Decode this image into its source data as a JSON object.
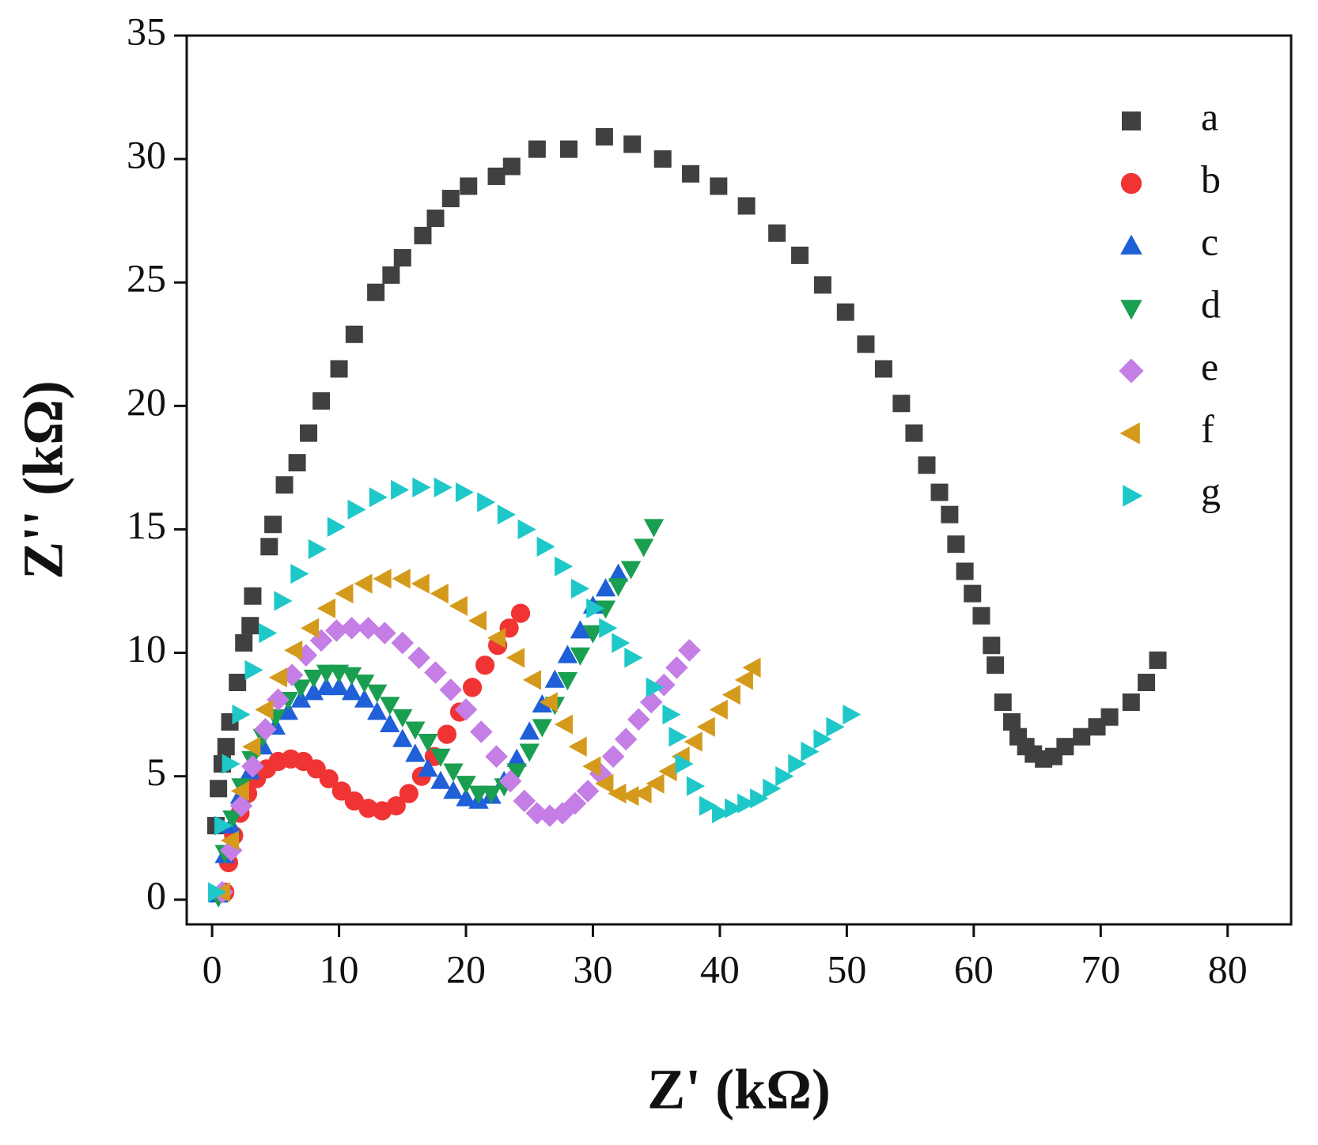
{
  "chart_data": {
    "type": "scatter",
    "x_label": "Z' (kΩ)",
    "y_label": "Z'' (kΩ)",
    "xlim": [
      -2,
      85
    ],
    "ylim": [
      -1,
      35
    ],
    "xticks": [
      0,
      10,
      20,
      30,
      40,
      50,
      60,
      70,
      80
    ],
    "yticks": [
      0,
      5,
      10,
      15,
      20,
      25,
      30,
      35
    ],
    "legend": "upper right",
    "series": [
      {
        "name": "a",
        "color": "#404040",
        "marker": "square",
        "x": [
          0.3,
          0.5,
          0.8,
          1.1,
          1.4,
          2,
          2.5,
          3,
          3.2,
          4.5,
          4.8,
          5.7,
          6.7,
          7.6,
          8.6,
          10,
          11.2,
          12.9,
          14.1,
          15,
          16.6,
          17.6,
          18.8,
          20.2,
          22.4,
          23.6,
          25.6,
          28.1,
          30.9,
          33.1,
          35.5,
          37.7,
          39.9,
          42.1,
          44.5,
          46.3,
          48.1,
          49.9,
          51.5,
          52.9,
          54.3,
          55.3,
          56.3,
          57.3,
          58.1,
          58.6,
          59.3,
          59.9,
          60.6,
          61.4,
          61.7,
          62.3,
          63,
          63.5,
          64.1,
          64.7,
          65.5,
          66.3,
          67.2,
          68.5,
          69.7,
          70.7,
          72.4,
          73.6,
          74.5
        ],
        "values": [
          3,
          4.5,
          5.5,
          6.2,
          7.2,
          8.8,
          10.4,
          11.1,
          12.3,
          14.3,
          15.2,
          16.8,
          17.7,
          18.9,
          20.2,
          21.5,
          22.9,
          24.6,
          25.3,
          26,
          26.9,
          27.6,
          28.4,
          28.9,
          29.3,
          29.7,
          30.4,
          30.4,
          30.9,
          30.6,
          30,
          29.4,
          28.9,
          28.1,
          27,
          26.1,
          24.9,
          23.8,
          22.5,
          21.5,
          20.1,
          18.9,
          17.6,
          16.5,
          15.6,
          14.4,
          13.3,
          12.4,
          11.5,
          10.3,
          9.5,
          8,
          7.2,
          6.6,
          6.2,
          5.9,
          5.7,
          5.8,
          6.2,
          6.6,
          7,
          7.4,
          8,
          8.8,
          9.7
        ]
      },
      {
        "name": "b",
        "color": "#f03434",
        "marker": "circle",
        "x": [
          1,
          1.3,
          1.7,
          2.2,
          2.8,
          3.5,
          4.3,
          5.2,
          6.2,
          7.2,
          8.2,
          9.2,
          10.2,
          11.2,
          12.3,
          13.4,
          14.5,
          15.5,
          16.5,
          17.5,
          18.5,
          19.5,
          20.5,
          21.5,
          22.5,
          23.4,
          24.3
        ],
        "values": [
          0.3,
          1.5,
          2.6,
          3.5,
          4.3,
          4.9,
          5.3,
          5.6,
          5.7,
          5.6,
          5.3,
          4.9,
          4.4,
          4,
          3.7,
          3.6,
          3.8,
          4.3,
          5,
          5.8,
          6.7,
          7.6,
          8.6,
          9.5,
          10.3,
          11,
          11.6
        ]
      },
      {
        "name": "c",
        "color": "#1f5fd8",
        "marker": "triangle-up",
        "x": [
          0.5,
          1,
          1.5,
          2.2,
          3,
          4,
          5,
          6,
          7,
          8,
          9,
          10,
          11,
          12,
          13,
          14,
          15,
          16,
          17,
          18,
          19,
          20,
          21,
          22,
          23,
          24,
          25,
          26,
          27,
          28,
          29,
          30,
          31,
          32
        ],
        "values": [
          0.2,
          1.8,
          3,
          4.2,
          5.2,
          6.2,
          7,
          7.6,
          8.1,
          8.4,
          8.6,
          8.6,
          8.4,
          8.1,
          7.6,
          7.1,
          6.5,
          5.9,
          5.3,
          4.8,
          4.4,
          4.1,
          4,
          4.2,
          4.8,
          5.7,
          6.8,
          7.9,
          8.9,
          9.9,
          10.9,
          11.9,
          12.6,
          13.2
        ]
      },
      {
        "name": "d",
        "color": "#1a9e50",
        "marker": "triangle-down",
        "x": [
          0.5,
          1,
          1.6,
          2.3,
          3.1,
          4,
          5,
          6,
          7,
          8,
          9,
          10,
          11,
          12,
          13,
          14,
          15,
          16,
          17,
          18,
          19,
          20,
          21,
          22,
          23,
          24,
          25,
          26,
          27,
          28,
          29,
          30,
          31,
          32,
          33,
          34,
          34.8
        ],
        "values": [
          0.1,
          1.9,
          3.3,
          4.6,
          5.7,
          6.6,
          7.4,
          8.1,
          8.6,
          9,
          9.2,
          9.2,
          9.1,
          8.8,
          8.4,
          7.9,
          7.4,
          6.9,
          6.4,
          5.8,
          5.2,
          4.7,
          4.3,
          4.3,
          4.6,
          5.2,
          6,
          7,
          7.9,
          8.9,
          9.9,
          10.8,
          11.8,
          12.7,
          13.4,
          14.3,
          15.1
        ]
      },
      {
        "name": "e",
        "color": "#c47ee6",
        "marker": "diamond",
        "x": [
          0.8,
          1.5,
          2.3,
          3.2,
          4.2,
          5.2,
          6.3,
          7.4,
          8.6,
          9.8,
          11,
          12.3,
          13.6,
          15,
          16.3,
          17.6,
          18.8,
          20,
          21.2,
          22.4,
          23.5,
          24.6,
          25.6,
          26.6,
          27.6,
          28.6,
          29.6,
          30.6,
          31.6,
          32.6,
          33.6,
          34.6,
          35.6,
          36.6,
          37.6
        ],
        "values": [
          0.3,
          2,
          3.8,
          5.4,
          6.9,
          8.1,
          9.1,
          9.9,
          10.5,
          10.9,
          11,
          11,
          10.8,
          10.4,
          9.8,
          9.2,
          8.5,
          7.7,
          6.8,
          5.8,
          4.8,
          4,
          3.5,
          3.4,
          3.5,
          3.9,
          4.4,
          5.1,
          5.8,
          6.5,
          7.3,
          8,
          8.7,
          9.4,
          10.1
        ]
      },
      {
        "name": "f",
        "color": "#d49a1b",
        "marker": "triangle-left",
        "x": [
          0.8,
          1.5,
          2.3,
          3.2,
          4.2,
          5.3,
          6.5,
          7.8,
          9.1,
          10.5,
          12,
          13.5,
          15,
          16.5,
          18,
          19.5,
          21,
          22.5,
          24,
          25.3,
          26.6,
          27.8,
          28.9,
          30,
          31,
          32,
          33,
          34,
          35,
          36,
          37,
          38,
          39,
          40,
          41,
          42,
          42.6
        ],
        "values": [
          0.3,
          2.4,
          4.4,
          6.2,
          7.7,
          9,
          10.1,
          11,
          11.8,
          12.4,
          12.8,
          13,
          13,
          12.8,
          12.4,
          11.9,
          11.3,
          10.6,
          9.8,
          8.9,
          8,
          7.1,
          6.2,
          5.4,
          4.7,
          4.3,
          4.2,
          4.3,
          4.7,
          5.2,
          5.8,
          6.4,
          7,
          7.7,
          8.3,
          8.9,
          9.4
        ]
      },
      {
        "name": "g",
        "color": "#1ec8c8",
        "marker": "triangle-right",
        "x": [
          0.3,
          0.8,
          1.4,
          2.2,
          3.2,
          4.3,
          5.5,
          6.8,
          8.2,
          9.7,
          11.3,
          13,
          14.7,
          16.4,
          18.1,
          19.8,
          21.5,
          23.1,
          24.7,
          26.2,
          27.6,
          28.9,
          30.1,
          31.1,
          32.1,
          33.1,
          34.8,
          36.1,
          36.6,
          37.1,
          38,
          39,
          40,
          41,
          42,
          43,
          44,
          45,
          46,
          47,
          48,
          49,
          50.3
        ],
        "values": [
          0.3,
          3,
          5.5,
          7.5,
          9.3,
          10.8,
          12.1,
          13.2,
          14.2,
          15.1,
          15.8,
          16.3,
          16.6,
          16.7,
          16.7,
          16.5,
          16.1,
          15.6,
          15,
          14.3,
          13.5,
          12.6,
          11.8,
          11,
          10.4,
          9.8,
          8.6,
          7.5,
          6.6,
          5.5,
          4.6,
          3.8,
          3.5,
          3.7,
          3.9,
          4.1,
          4.5,
          5,
          5.5,
          6,
          6.5,
          7,
          7.5
        ]
      }
    ]
  }
}
